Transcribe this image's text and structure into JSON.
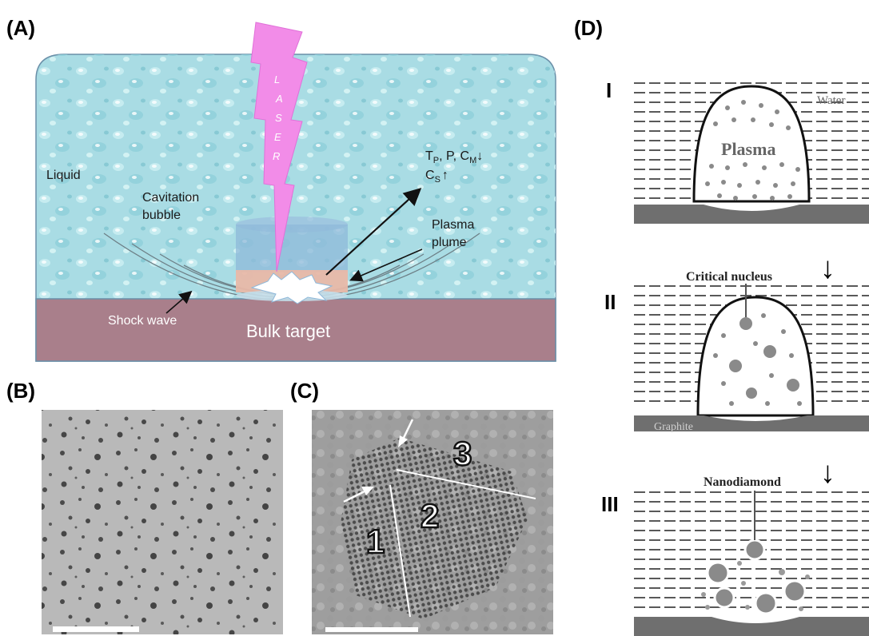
{
  "panels": {
    "a": {
      "label": "(A)",
      "laser_letters": [
        "L",
        "A",
        "S",
        "E",
        "R"
      ],
      "liquid": "Liquid",
      "cavitation_line1": "Cavitation",
      "cavitation_line2": "bubble",
      "plasma_line1": "Plasma",
      "plasma_line2": "plume",
      "shock_wave": "Shock wave",
      "bulk_target": "Bulk target",
      "eq_t": "T",
      "eq_t_sub": "P",
      "eq_mid": ", P, C",
      "eq_m_sub": "M",
      "eq_c": "C",
      "eq_c_sub": "S",
      "down_arrow": "↓",
      "up_arrow": "↑"
    },
    "b": {
      "label": "(B)"
    },
    "c": {
      "label": "(C)",
      "num1": "1",
      "num2": "2",
      "num3": "3"
    },
    "d": {
      "label": "(D)",
      "stage1": "I",
      "stage2": "II",
      "stage3": "III",
      "water": "Water",
      "plasma": "Plasma",
      "critical_nucleus": "Critical nucleus",
      "graphite": "Graphite",
      "nanodiamond": "Nanodiamond",
      "arrow": "↓"
    }
  },
  "colors": {
    "liquid": "#a9dce4",
    "bulk_target": "#a97f8b",
    "laser": "#f28ce8",
    "plasma_plume": "#e8b8a8",
    "bubble": "#8fb9da",
    "graphite": "#6f6f6f"
  }
}
